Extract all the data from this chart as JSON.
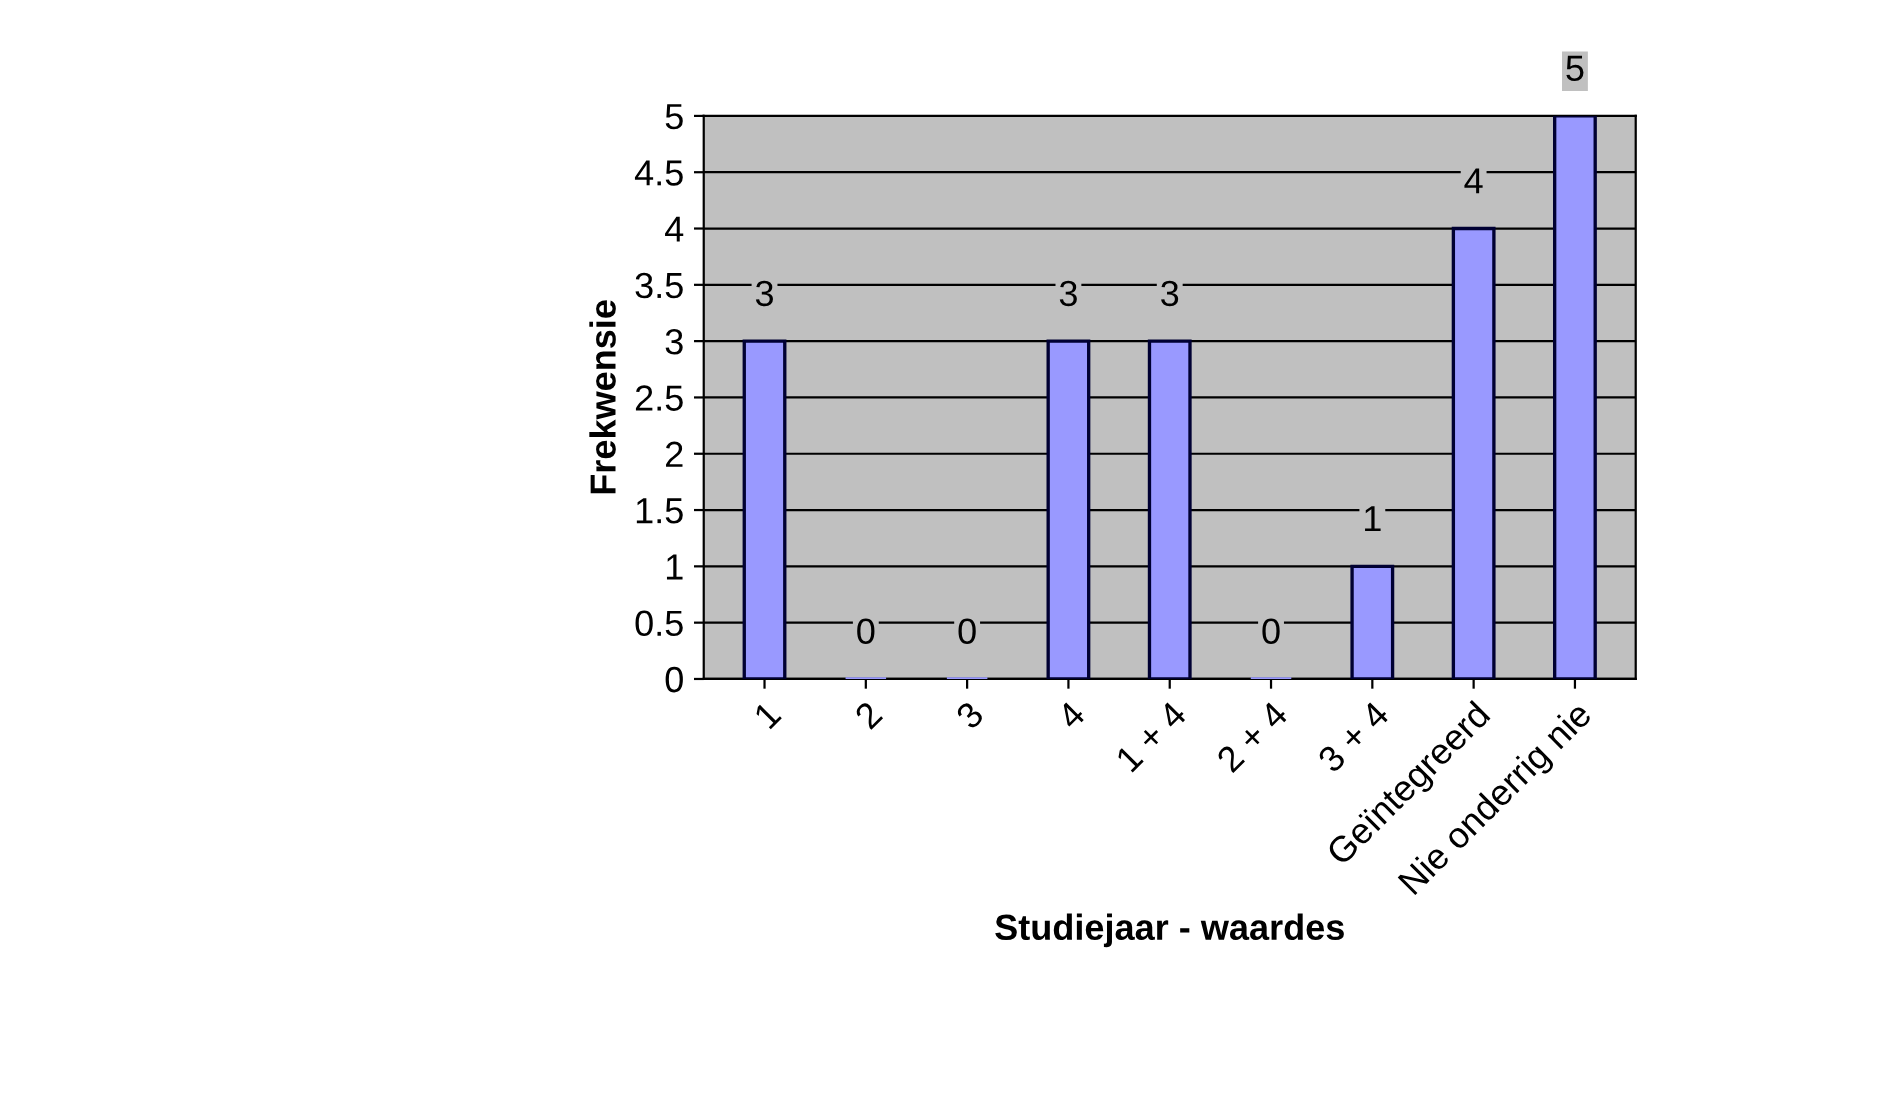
{
  "chart_data": {
    "type": "bar",
    "xlabel": "Studiejaar - waardes",
    "ylabel": "Frekwensie",
    "categories": [
      "1",
      "2",
      "3",
      "4",
      "1 + 4",
      "2 + 4",
      "3 + 4",
      "Geïntegreerd",
      "Nie onderrig nie"
    ],
    "values": [
      3,
      0,
      0,
      3,
      3,
      0,
      1,
      4,
      5
    ],
    "color": "#9999ff",
    "ylim": [
      0,
      5
    ],
    "yticks": [
      0,
      0.5,
      1,
      1.5,
      2,
      2.5,
      3,
      3.5,
      4,
      4.5,
      5
    ],
    "grid": "y",
    "data_labels": true
  }
}
